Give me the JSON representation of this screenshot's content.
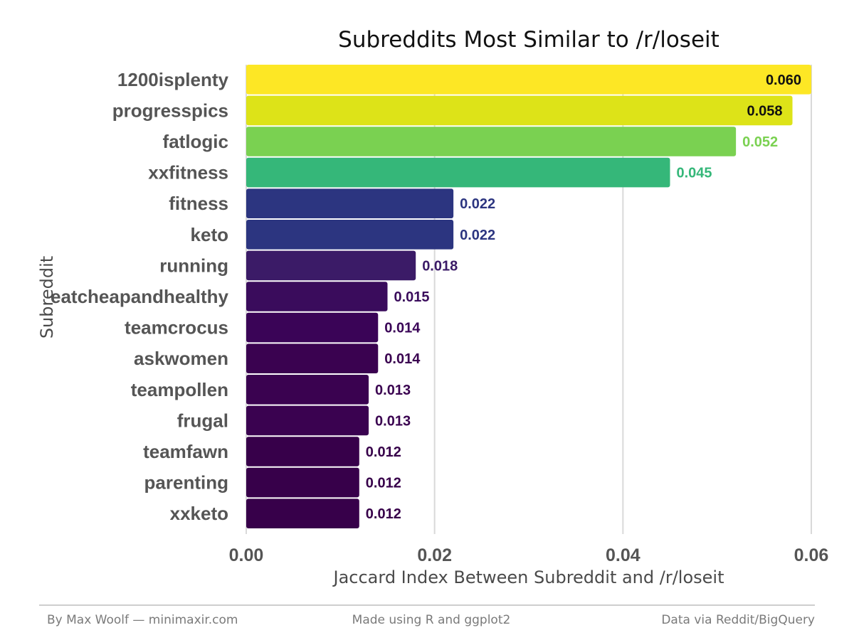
{
  "chart_data": {
    "type": "bar",
    "orientation": "horizontal",
    "title": "Subreddits Most Similar to /r/loseit",
    "xlabel": "Jaccard Index Between Subreddit and /r/loseit",
    "ylabel": "Subreddit",
    "xlim": [
      0,
      0.06
    ],
    "x_ticks": [
      "0.00",
      "0.02",
      "0.04",
      "0.06"
    ],
    "grid": "vertical major gridlines",
    "categories": [
      "1200isplenty",
      "progresspics",
      "fatlogic",
      "xxfitness",
      "fitness",
      "keto",
      "running",
      "eatcheapandhealthy",
      "teamcrocus",
      "askwomen",
      "teampollen",
      "frugal",
      "teamfawn",
      "parenting",
      "xxketo"
    ],
    "values": [
      0.06,
      0.058,
      0.052,
      0.045,
      0.022,
      0.022,
      0.018,
      0.015,
      0.014,
      0.014,
      0.013,
      0.013,
      0.012,
      0.012,
      0.012
    ],
    "value_labels": [
      "0.060",
      "0.058",
      "0.052",
      "0.045",
      "0.022",
      "0.022",
      "0.018",
      "0.015",
      "0.014",
      "0.014",
      "0.013",
      "0.013",
      "0.012",
      "0.012",
      "0.012"
    ],
    "colors": [
      "#fde725",
      "#dde318",
      "#7ad151",
      "#35b779",
      "#2c3580",
      "#2c3580",
      "#3b1b67",
      "#3a0c5c",
      "#3a0457",
      "#3a0250",
      "#3a0250",
      "#3a0250",
      "#37004a",
      "#37004a",
      "#37004a"
    ],
    "label_colors": [
      "#111111",
      "#111111",
      "#7ad151",
      "#35b779",
      "#2c3580",
      "#2c3580",
      "#3b1b67",
      "#3a0c5c",
      "#3a0457",
      "#3a0250",
      "#3a0250",
      "#3a0250",
      "#37004a",
      "#37004a",
      "#37004a"
    ]
  },
  "footer": {
    "left": "By Max Woolf — minimaxir.com",
    "center": "Made using R and ggplot2",
    "right": "Data via Reddit/BigQuery"
  }
}
